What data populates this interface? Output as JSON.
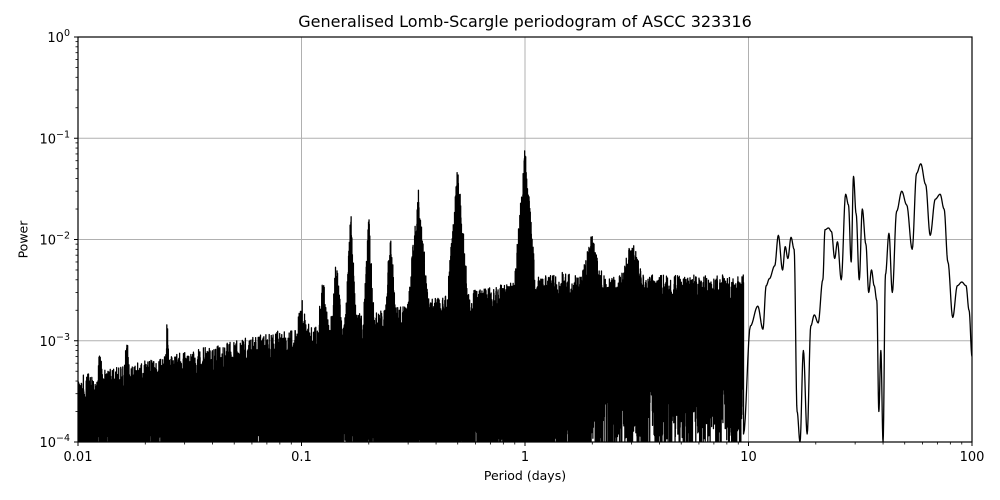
{
  "chart_data": {
    "type": "line",
    "title": "Generalised Lomb-Scargle periodogram of ASCC 323316",
    "xlabel": "Period (days)",
    "ylabel": "Power",
    "xscale": "log",
    "yscale": "log",
    "xlim": [
      0.01,
      100
    ],
    "ylim": [
      0.0001,
      1
    ],
    "grid": true,
    "legend": null,
    "line_color": "#000000",
    "grid_color": "#b0b0b0",
    "x_ticks": [
      {
        "value": 0.01,
        "label": "0.01"
      },
      {
        "value": 0.1,
        "label": "0.1"
      },
      {
        "value": 1,
        "label": "1"
      },
      {
        "value": 10,
        "label": "10"
      },
      {
        "value": 100,
        "label": "100"
      }
    ],
    "y_ticks": [
      {
        "value": 0.0001,
        "base": "10",
        "exp": "−4"
      },
      {
        "value": 0.001,
        "base": "10",
        "exp": "−3"
      },
      {
        "value": 0.01,
        "base": "10",
        "exp": "−2"
      },
      {
        "value": 0.1,
        "base": "10",
        "exp": "−1"
      },
      {
        "value": 1,
        "base": "10",
        "exp": "0"
      }
    ],
    "notable_peaks": [
      {
        "period": 0.0125,
        "power": 0.00095
      },
      {
        "period": 0.0165,
        "power": 0.0012
      },
      {
        "period": 0.025,
        "power": 0.0016
      },
      {
        "period": 0.1,
        "power": 0.0028
      },
      {
        "period": 0.125,
        "power": 0.0045
      },
      {
        "period": 0.143,
        "power": 0.0065
      },
      {
        "period": 0.166,
        "power": 0.021
      },
      {
        "period": 0.2,
        "power": 0.019
      },
      {
        "period": 0.25,
        "power": 0.013
      },
      {
        "period": 0.333,
        "power": 0.032
      },
      {
        "period": 0.5,
        "power": 0.056
      },
      {
        "period": 1.0,
        "power": 0.085
      },
      {
        "period": 2.0,
        "power": 0.012
      },
      {
        "period": 3.0,
        "power": 0.011
      },
      {
        "period": 14.5,
        "power": 0.011
      },
      {
        "period": 16.0,
        "power": 0.0105
      }
    ],
    "long_period_curve": {
      "x": [
        9.5,
        10.2,
        11.0,
        11.6,
        12.0,
        12.4,
        13.1,
        13.6,
        14.2,
        14.6,
        15.0,
        15.5,
        16.0,
        16.5,
        17.0,
        17.6,
        18.3,
        19.0,
        19.7,
        20.5,
        21.5,
        22.0,
        22.8,
        23.5,
        24.3,
        25.0,
        26.0,
        27.2,
        28.0,
        28.8,
        29.5,
        30.3,
        31.3,
        32.3,
        33.5,
        34.5,
        35.5,
        36.5,
        37.5,
        38.3,
        39.1,
        40.0,
        41.0,
        42.5,
        44.0,
        46.0,
        48.5,
        51.0,
        54.0,
        56.5,
        59.0,
        62.0,
        65.0,
        68.5,
        72.0,
        75.0,
        78.0,
        82.0,
        86.0,
        90.0,
        94.0,
        97.0,
        100.0
      ],
      "y": [
        0.00012,
        0.0014,
        0.0022,
        0.0013,
        0.0035,
        0.0041,
        0.0055,
        0.011,
        0.005,
        0.0085,
        0.0065,
        0.0105,
        0.008,
        0.0002,
        0.0001,
        0.0008,
        0.00012,
        0.0014,
        0.0018,
        0.0015,
        0.004,
        0.0125,
        0.013,
        0.012,
        0.0065,
        0.0095,
        0.004,
        0.028,
        0.022,
        0.006,
        0.042,
        0.018,
        0.004,
        0.02,
        0.009,
        0.003,
        0.005,
        0.0035,
        0.0025,
        0.0002,
        0.0008,
        0.0001,
        0.0045,
        0.0115,
        0.003,
        0.019,
        0.03,
        0.022,
        0.008,
        0.045,
        0.056,
        0.035,
        0.011,
        0.025,
        0.028,
        0.02,
        0.006,
        0.0017,
        0.0035,
        0.0038,
        0.0035,
        0.002,
        0.0007
      ]
    }
  }
}
